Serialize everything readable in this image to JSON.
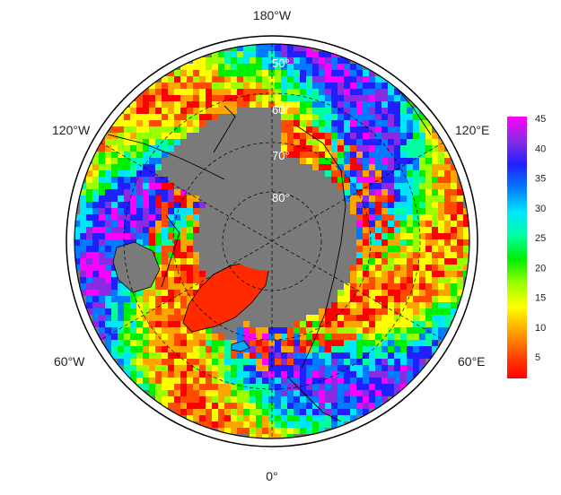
{
  "map": {
    "projection": "north-polar-stereographic",
    "center": "North Pole",
    "ocean_color": "#7a7a7a",
    "frame_color": "#000000",
    "coastline_color": "#000000",
    "longitude_labels": [
      "180°W",
      "120°E",
      "60°E",
      "0°",
      "60°W",
      "120°W"
    ],
    "latitude_labels": [
      "50°",
      "60°",
      "70°",
      "80°"
    ],
    "grid": "dashed"
  },
  "colorbar": {
    "orientation": "vertical",
    "placement": "right",
    "ticks": [
      "45",
      "40",
      "35",
      "30",
      "25",
      "20",
      "15",
      "10",
      "5"
    ],
    "scale": [
      "#ff0000",
      "#ff4a00",
      "#ffa500",
      "#ffff00",
      "#9aff00",
      "#00ee00",
      "#00ffa0",
      "#00e5ff",
      "#007bff",
      "#2020ff",
      "#8a2be2",
      "#ff00ff"
    ]
  }
}
